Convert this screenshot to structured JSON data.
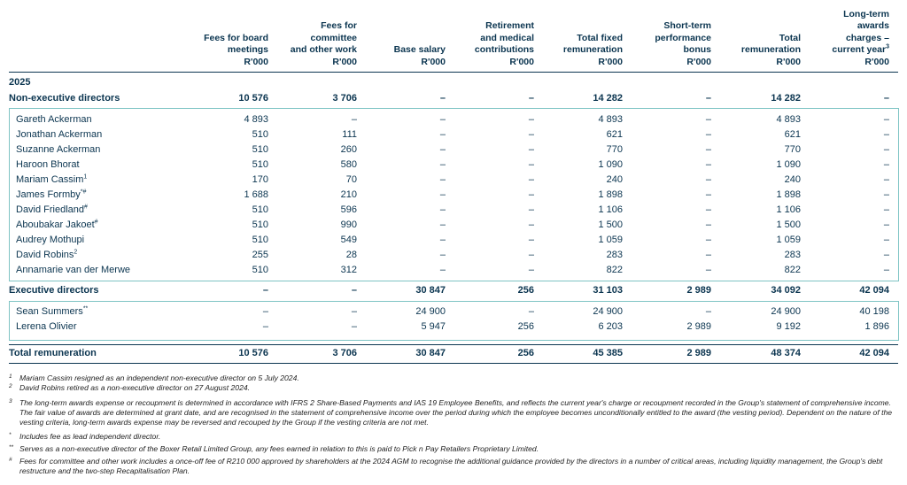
{
  "table": {
    "columns": [
      [
        "Fees for board",
        "meetings",
        "R'000"
      ],
      [
        "Fees for",
        "committee",
        "and other work",
        "R'000"
      ],
      [
        "Base salary",
        "R'000"
      ],
      [
        "Retirement",
        "and medical",
        "contributions",
        "R'000"
      ],
      [
        "Total fixed",
        "remuneration",
        "R'000"
      ],
      [
        "Short-term",
        "performance",
        "bonus",
        "R'000"
      ],
      [
        "Total",
        "remuneration",
        "R'000"
      ],
      [
        "Long-term",
        "awards",
        "charges –",
        {
          "text": "current year",
          "note": "3"
        },
        "R'000"
      ]
    ],
    "year": "2025",
    "groups": [
      {
        "label": "Non-executive directors",
        "cells": [
          "10 576",
          "3 706",
          "–",
          "–",
          "14 282",
          "–",
          "14 282",
          "–"
        ],
        "members": [
          {
            "name": "Gareth Ackerman",
            "cells": [
              "4 893",
              "–",
              "–",
              "–",
              "4 893",
              "–",
              "4 893",
              "–"
            ]
          },
          {
            "name": "Jonathan Ackerman",
            "cells": [
              "510",
              "111",
              "–",
              "–",
              "621",
              "–",
              "621",
              "–"
            ]
          },
          {
            "name": "Suzanne Ackerman",
            "cells": [
              "510",
              "260",
              "–",
              "–",
              "770",
              "–",
              "770",
              "–"
            ]
          },
          {
            "name": "Haroon Bhorat",
            "cells": [
              "510",
              "580",
              "–",
              "–",
              "1 090",
              "–",
              "1 090",
              "–"
            ]
          },
          {
            "name": "Mariam Cassim",
            "note": "1",
            "cells": [
              "170",
              "70",
              "–",
              "–",
              "240",
              "–",
              "240",
              "–"
            ]
          },
          {
            "name": "James Formby",
            "note": "*#",
            "cells": [
              "1 688",
              "210",
              "–",
              "–",
              "1 898",
              "–",
              "1 898",
              "–"
            ]
          },
          {
            "name": "David Friedland",
            "note": "#",
            "cells": [
              "510",
              "596",
              "–",
              "–",
              "1 106",
              "–",
              "1 106",
              "–"
            ]
          },
          {
            "name": "Aboubakar Jakoet",
            "note": "#",
            "cells": [
              "510",
              "990",
              "–",
              "–",
              "1 500",
              "–",
              "1 500",
              "–"
            ]
          },
          {
            "name": "Audrey Mothupi",
            "cells": [
              "510",
              "549",
              "–",
              "–",
              "1 059",
              "–",
              "1 059",
              "–"
            ]
          },
          {
            "name": "David Robins",
            "note": "2",
            "cells": [
              "255",
              "28",
              "–",
              "–",
              "283",
              "–",
              "283",
              "–"
            ]
          },
          {
            "name": "Annamarie van der Merwe",
            "cells": [
              "510",
              "312",
              "–",
              "–",
              "822",
              "–",
              "822",
              "–"
            ]
          }
        ]
      },
      {
        "label": "Executive directors",
        "cells": [
          "–",
          "–",
          "30 847",
          "256",
          "31 103",
          "2 989",
          "34 092",
          "42 094"
        ],
        "members": [
          {
            "name": "Sean Summers",
            "note": "**",
            "cells": [
              "–",
              "–",
              "24 900",
              "–",
              "24 900",
              "–",
              "24 900",
              "40 198"
            ]
          },
          {
            "name": "Lerena Olivier",
            "cells": [
              "–",
              "–",
              "5 947",
              "256",
              "6 203",
              "2 989",
              "9 192",
              "1 896"
            ]
          }
        ]
      }
    ],
    "total": {
      "label": "Total remuneration",
      "cells": [
        "10 576",
        "3 706",
        "30 847",
        "256",
        "45 385",
        "2 989",
        "48 374",
        "42 094"
      ]
    }
  },
  "footnotes": [
    {
      "marker": "1",
      "text": "Mariam Cassim resigned as an independent non-executive director on 5 July 2024."
    },
    {
      "marker": "2",
      "text": "David Robins retired as a non-executive director on 27 August 2024."
    },
    {
      "marker": "3",
      "text": "The long-term awards expense or recoupment is determined in accordance with IFRS 2 Share-Based Payments and IAS 19 Employee Benefits, and reflects the current year's charge or recoupment recorded in the Group's statement of comprehensive income. The fair value of awards are determined at grant date, and are recognised in the statement of comprehensive income over the period during which the employee becomes unconditionally entitled to the award (the vesting period). Dependent on the nature of the vesting criteria, long-term awards expense may be reversed and recouped by the Group if the vesting criteria are not met."
    },
    {
      "marker": "*",
      "text": "Includes fee as lead independent director."
    },
    {
      "marker": "**",
      "text": "Serves as a non-executive director of the Boxer Retail Limited Group, any fees earned in relation to this is paid to Pick n Pay Retailers Proprietary Limited."
    },
    {
      "marker": "#",
      "text": "Fees for committee and other work includes a once-off fee of R210 000 approved by shareholders at the 2024 AGM to recognise the additional guidance provided by the directors in a number of critical areas, including liquidity management, the Group's debt restructure and the two-step Recapitalisation Plan."
    }
  ]
}
